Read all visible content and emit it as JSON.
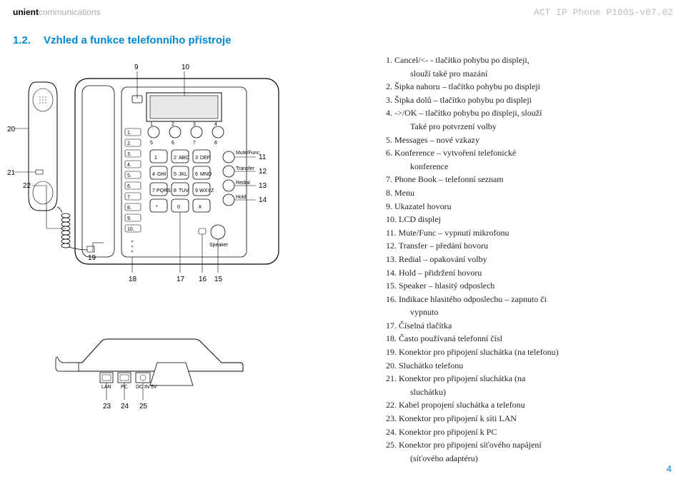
{
  "header": {
    "brand_bold": "unient",
    "brand_light": "communications",
    "doc_code": "ACT IP Phone P160S-v07.02"
  },
  "title": {
    "number": "1.2.",
    "text": "Vzhled a funkce telefonního přístroje"
  },
  "list": [
    {
      "n": "1.",
      "t": "Cancel/<-  - tlačítko pohybu po displeji,",
      "cont": [
        "slouží také pro mazání"
      ]
    },
    {
      "n": "2.",
      "t": "Šipka nahoru – tlačítko pohybu po displeji"
    },
    {
      "n": "3.",
      "t": "Šipka dolů – tlačítko pohybu po displeji"
    },
    {
      "n": "4.",
      "t": "->/OK – tlačítko pohybu po displeji, slouží",
      "cont": [
        "Také pro potvrzení volby"
      ]
    },
    {
      "n": "5.",
      "t": "Messages – nové vzkazy"
    },
    {
      "n": "6.",
      "t": "Konference – vytvoření telefonické",
      "cont": [
        "konference"
      ]
    },
    {
      "n": "7.",
      "t": "Phone Book – telefonní seznam"
    },
    {
      "n": "8.",
      "t": "Menu"
    },
    {
      "n": "9.",
      "t": "Ukazatel hovoru"
    },
    {
      "n": "10.",
      "t": "LCD displej"
    },
    {
      "n": "11.",
      "t": "Mute/Func – vypnutí mikrofonu"
    },
    {
      "n": "12.",
      "t": "Transfer – předání hovoru"
    },
    {
      "n": "13.",
      "t": "Redial – opakování volby"
    },
    {
      "n": "14.",
      "t": "Hold – přidržení hovoru"
    },
    {
      "n": "15.",
      "t": "Speaker – hlasitý odposlech"
    },
    {
      "n": "16.",
      "t": "Indikace hlasitého odposlechu – zapnuto či",
      "cont": [
        "vypnuto"
      ]
    },
    {
      "n": "17.",
      "t": "Číselná tlačítka"
    },
    {
      "n": "18.",
      "t": "Často používaná telefonní čísl"
    },
    {
      "n": "19.",
      "t": "Konektor pro připojení sluchátka (na telefonu)"
    },
    {
      "n": "20.",
      "t": "Sluchátko telefonu"
    },
    {
      "n": "21.",
      "t": "Konektor pro připojení sluchátka (na",
      "cont": [
        "sluchátku)"
      ]
    },
    {
      "n": "22.",
      "t": "Kabel propojení sluchátka a telefonu"
    },
    {
      "n": "23.",
      "t": "Konektor pro připojení k síti LAN"
    },
    {
      "n": "24.",
      "t": "Konektor pro připojení k PC"
    },
    {
      "n": "25.",
      "t": "Konektor pro připojení síťového napájení",
      "cont": [
        "(síťového adaptéru)"
      ]
    }
  ],
  "callouts": {
    "c20": "20",
    "c21": "21",
    "c22": "22",
    "c19": "19",
    "c18": "18",
    "c17": "17",
    "c16": "16",
    "c15": "15",
    "c14": "14",
    "c13": "13",
    "c12": "12",
    "c11": "11",
    "c10": "10",
    "c9": "9",
    "c23": "23",
    "c24": "24",
    "c25": "25"
  },
  "labels": {
    "lan": "LAN",
    "pc": "PC",
    "dc": "DC IN 5V",
    "k1": "1",
    "k2": "2",
    "k3": "3",
    "k4": "4",
    "k5": "5",
    "k6": "6",
    "k7": "7",
    "k8": "8",
    "k9": "9",
    "k0": "0",
    "kstar": "*",
    "khash": "#",
    "abc": "ABC",
    "def": "DEF",
    "ghi": "GHI",
    "jkl": "JKL",
    "mno": "MNO",
    "pqrs": "PQRS",
    "tuv": "TUV",
    "wxyz": "WXYZ",
    "mute": "Mute/Func",
    "transfer": "Transfer",
    "redial": "Redial",
    "hold": "Hold",
    "speaker": "Speaker",
    "m1": "1.",
    "m2": "2.",
    "m3": "3.",
    "m4": "4.",
    "m5": "5.",
    "m6": "6.",
    "m7": "7.",
    "m8": "8.",
    "m9": "9.",
    "m10": "10."
  },
  "page_number": "4",
  "colors": {
    "brand_blue": "#0088d4",
    "doc_code": "#c7b9b9",
    "text": "#222222",
    "line": "#000000"
  }
}
